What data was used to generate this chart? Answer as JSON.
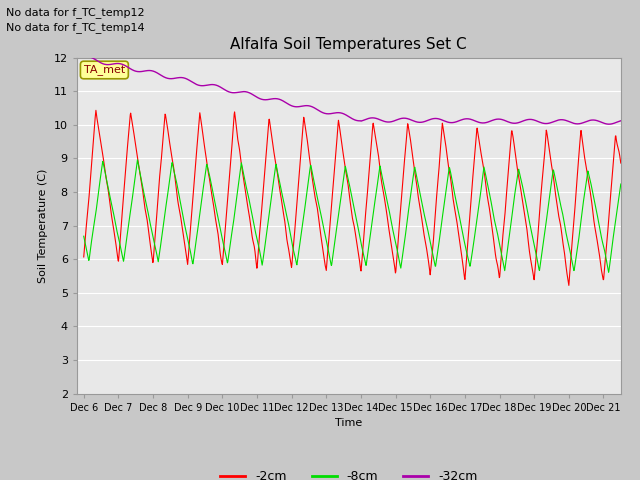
{
  "title": "Alfalfa Soil Temperatures Set C",
  "ylabel": "Soil Temperature (C)",
  "xlabel": "Time",
  "no_data_text_1": "No data for f_TC_temp12",
  "no_data_text_2": "No data for f_TC_temp14",
  "ta_met_label": "TA_met",
  "ylim": [
    2.0,
    12.0
  ],
  "yticks": [
    2.0,
    3.0,
    4.0,
    5.0,
    6.0,
    7.0,
    8.0,
    9.0,
    10.0,
    11.0,
    12.0
  ],
  "xtick_labels": [
    "Dec 6",
    "Dec 7",
    "Dec 8",
    "Dec 9",
    "Dec 10",
    "Dec 11",
    "Dec 12",
    "Dec 13",
    "Dec 14",
    "Dec 15",
    "Dec 16",
    "Dec 17",
    "Dec 18",
    "Dec 19",
    "Dec 20",
    "Dec 21"
  ],
  "color_red": "#FF0000",
  "color_green": "#00DD00",
  "color_purple": "#AA00AA",
  "fig_bg": "#C8C8C8",
  "ax_bg": "#E8E8E8",
  "grid_color": "#FFFFFF",
  "legend_labels": [
    "-2cm",
    "-8cm",
    "-32cm"
  ],
  "ta_met_facecolor": "#FFFF99",
  "ta_met_edgecolor": "#999900"
}
